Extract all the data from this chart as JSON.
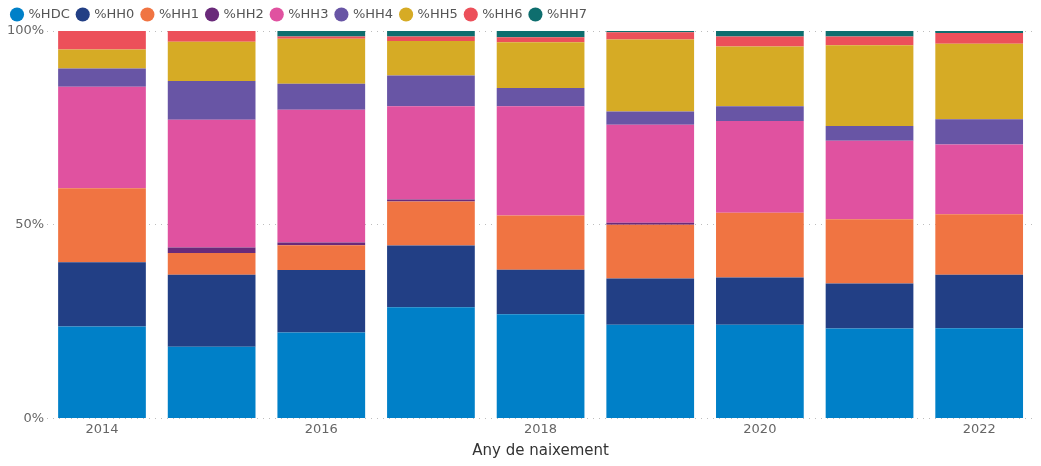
{
  "chart_data": {
    "type": "bar",
    "stacked": true,
    "xlabel": "Any de naixement",
    "categories": [
      "2014",
      null,
      "2016",
      null,
      "2018",
      null,
      "2020",
      null,
      "2022"
    ],
    "series": [
      {
        "name": "%HDC",
        "color": "#0080c8",
        "values": [
          23.7,
          18.5,
          22.2,
          28.7,
          26.9,
          24.2,
          24.2,
          23.2,
          23.3
        ]
      },
      {
        "name": "%HH0",
        "color": "#223f85",
        "values": [
          16.6,
          18.6,
          16.1,
          15.9,
          11.5,
          11.9,
          12.2,
          11.6,
          13.8
        ]
      },
      {
        "name": "%HH1",
        "color": "#f07442",
        "values": [
          19.1,
          5.6,
          6.4,
          11.4,
          14.0,
          13.9,
          16.7,
          16.6,
          15.6
        ]
      },
      {
        "name": "%HH2",
        "color": "#6a2a7a",
        "values": [
          0,
          1.4,
          0.7,
          0.5,
          0,
          0.5,
          0,
          0,
          0
        ]
      },
      {
        "name": "%HH3",
        "color": "#e052a0",
        "values": [
          26.2,
          33.0,
          34.3,
          24.1,
          28.2,
          25.3,
          23.7,
          20.3,
          18.0
        ]
      },
      {
        "name": "%HH4",
        "color": "#6855a5",
        "values": [
          4.7,
          10.0,
          6.7,
          7.9,
          4.7,
          3.4,
          3.8,
          3.8,
          6.5
        ]
      },
      {
        "name": "%HH5",
        "color": "#d6ab25",
        "values": [
          4.9,
          10.1,
          11.6,
          8.9,
          11.8,
          18.6,
          15.4,
          20.8,
          19.5
        ]
      },
      {
        "name": "%HH6",
        "color": "#ec505a",
        "values": [
          4.8,
          2.8,
          0.6,
          1.2,
          1.3,
          1.9,
          2.6,
          2.3,
          2.8
        ]
      },
      {
        "name": "%HH7",
        "color": "#0e6e6e",
        "values": [
          0,
          0,
          1.4,
          1.4,
          1.6,
          0.3,
          1.4,
          1.4,
          0.5
        ]
      }
    ],
    "ylim": [
      0,
      100
    ],
    "yticks": [
      {
        "value": 0,
        "label": "0%"
      },
      {
        "value": 50,
        "label": "50%"
      },
      {
        "value": 100,
        "label": "100%"
      }
    ],
    "grid": "y",
    "legend": "top left"
  }
}
